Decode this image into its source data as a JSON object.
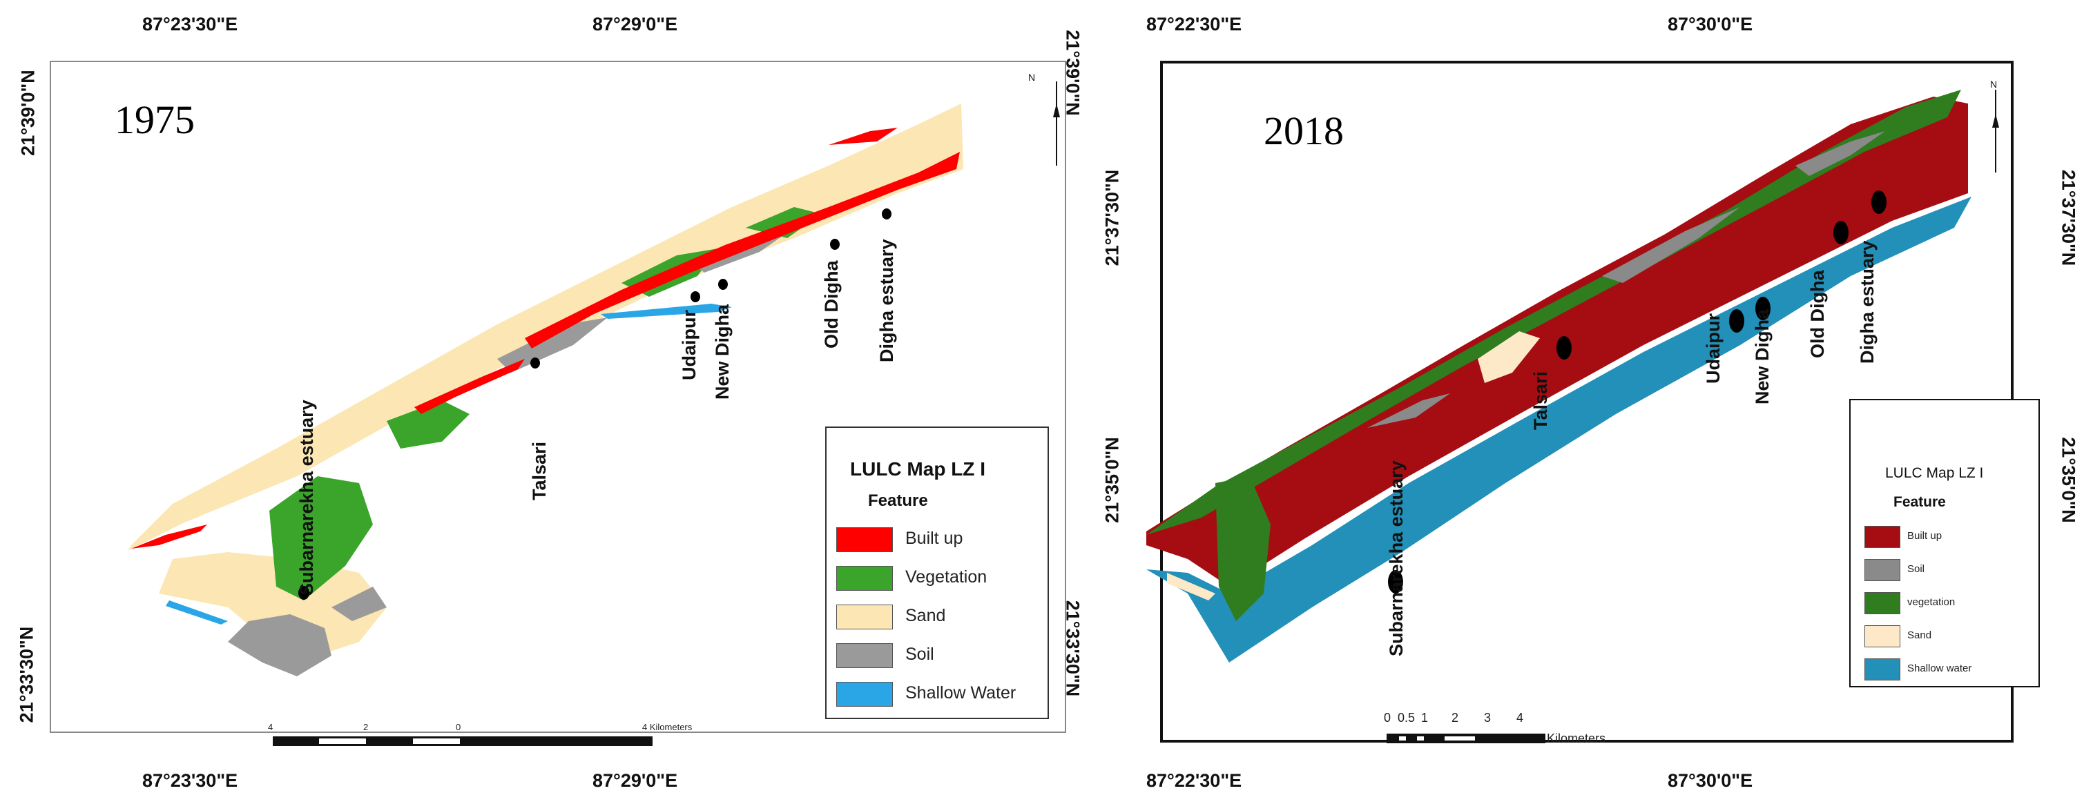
{
  "colors": {
    "p1_builtup": "#ff0000",
    "p1_veg": "#3aa52a",
    "p1_sand": "#fbe6b4",
    "p1_soil": "#9a9a9a",
    "p1_water": "#2aa6e6",
    "p2_builtup": "#a50d12",
    "p2_soil": "#8a8a8a",
    "p2_veg": "#2f7d1e",
    "p2_sand": "#fde9c8",
    "p2_water": "#2290b8"
  },
  "map1975": {
    "year": "1975",
    "top_coords": [
      "87°23'30\"E",
      "87°29'0\"E"
    ],
    "bottom_coords": [
      "87°23'30\"E",
      "87°29'0\"E"
    ],
    "left_coords": [
      "21°39'0\"N",
      "21°33'30\"N"
    ],
    "right_coords": [
      "21°39'0\"N",
      "21°33'30\"N"
    ],
    "places": [
      "Subarnarekha estuary",
      "Talsari",
      "Udaipur",
      "New Digha",
      "Old Digha",
      "Digha estuary"
    ],
    "legend": {
      "title": "LULC Map LZ I",
      "subtitle": "Feature",
      "items": [
        {
          "label": "Built up",
          "color": "#ff0000"
        },
        {
          "label": "Vegetation",
          "color": "#3aa52a"
        },
        {
          "label": "Sand",
          "color": "#fbe6b4"
        },
        {
          "label": "Soil",
          "color": "#9a9a9a"
        },
        {
          "label": "Shallow Water",
          "color": "#2aa6e6"
        }
      ]
    },
    "scale": {
      "labels": [
        "4",
        "2",
        "0",
        "4 Kilometers"
      ]
    },
    "north": "N"
  },
  "map2018": {
    "year": "2018",
    "top_coords": [
      "87°22'30\"E",
      "87°30'0\"E"
    ],
    "bottom_coords": [
      "87°22'30\"E",
      "87°30'0\"E"
    ],
    "left_coords": [
      "21°37'30\"N",
      "21°35'0\"N"
    ],
    "right_coords": [
      "21°37'30\"N",
      "21°35'0\"N"
    ],
    "places": [
      "Subarnarekha estuary",
      "Talsari",
      "Udaipur",
      "New Digha",
      "Old Digha",
      "Digha estuary"
    ],
    "legend": {
      "title": "LULC Map LZ I",
      "subtitle": "Feature",
      "items": [
        {
          "label": "Built up",
          "color": "#a50d12"
        },
        {
          "label": "Soil",
          "color": "#8a8a8a"
        },
        {
          "label": "vegetation",
          "color": "#2f7d1e"
        },
        {
          "label": "Sand",
          "color": "#fde9c8"
        },
        {
          "label": "Shallow water",
          "color": "#2290b8"
        }
      ]
    },
    "scale": {
      "labels": [
        "0",
        "0.5",
        "1",
        "2",
        "3",
        "4"
      ],
      "unit": "Kilometers"
    },
    "north": "N"
  }
}
